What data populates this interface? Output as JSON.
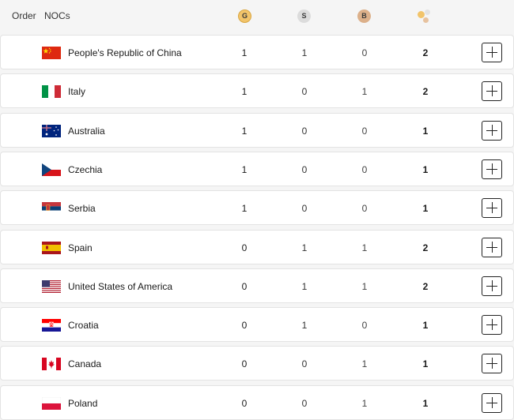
{
  "header": {
    "order_label": "Order",
    "nocs_label": "NOCs",
    "gold_badge": "G",
    "silver_badge": "S",
    "bronze_badge": "B",
    "total_icon": "medals-total-icon"
  },
  "colors": {
    "gold": "#f2c46a",
    "silver": "#dcdcdc",
    "bronze": "#dcb08a"
  },
  "rows": [
    {
      "country": "People's Republic of China",
      "flag": "flag-china-icon",
      "gold": "1",
      "silver": "1",
      "bronze": "0",
      "total": "2"
    },
    {
      "country": "Italy",
      "flag": "flag-italy-icon",
      "gold": "1",
      "silver": "0",
      "bronze": "1",
      "total": "2"
    },
    {
      "country": "Australia",
      "flag": "flag-australia-icon",
      "gold": "1",
      "silver": "0",
      "bronze": "0",
      "total": "1"
    },
    {
      "country": "Czechia",
      "flag": "flag-czechia-icon",
      "gold": "1",
      "silver": "0",
      "bronze": "0",
      "total": "1"
    },
    {
      "country": "Serbia",
      "flag": "flag-serbia-icon",
      "gold": "1",
      "silver": "0",
      "bronze": "0",
      "total": "1"
    },
    {
      "country": "Spain",
      "flag": "flag-spain-icon",
      "gold": "0",
      "silver": "1",
      "bronze": "1",
      "total": "2"
    },
    {
      "country": "United States of America",
      "flag": "flag-usa-icon",
      "gold": "0",
      "silver": "1",
      "bronze": "1",
      "total": "2"
    },
    {
      "country": "Croatia",
      "flag": "flag-croatia-icon",
      "gold": "0",
      "silver": "1",
      "bronze": "0",
      "total": "1"
    },
    {
      "country": "Canada",
      "flag": "flag-canada-icon",
      "gold": "0",
      "silver": "0",
      "bronze": "1",
      "total": "1"
    },
    {
      "country": "Poland",
      "flag": "flag-poland-icon",
      "gold": "0",
      "silver": "0",
      "bronze": "1",
      "total": "1"
    }
  ]
}
